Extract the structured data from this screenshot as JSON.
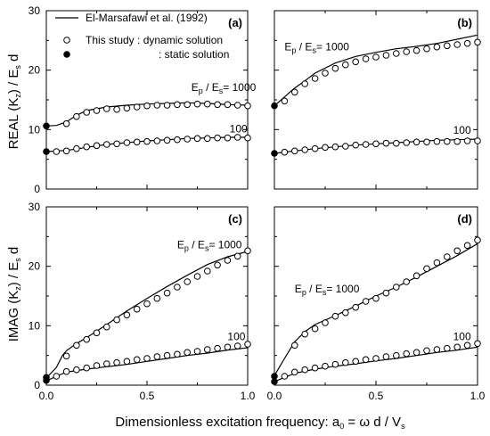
{
  "figure": {
    "ylabel_top": "REAL (K z) / Es d",
    "ylabel_bottom": "IMAG (K z) / Es d",
    "xlabel": "Dimensionless excitation frequency: a0 = ω d / Vs"
  },
  "legend": {
    "line_label": "El-Marsafawi et al. (1992)",
    "open_label": "This study  : dynamic solution",
    "filled_label": ": static solution"
  },
  "chart_data": [
    {
      "panel": "(a)",
      "type": "line",
      "xlim": [
        0,
        1
      ],
      "ylim": [
        0,
        30
      ],
      "xticks": [
        "0.0",
        "0.5",
        "1.0"
      ],
      "yticks": [
        "0",
        "10",
        "20",
        "30"
      ],
      "annotations": [
        {
          "text": "Ep / Es= 1000",
          "x": 0.72,
          "y": 16.5
        },
        {
          "text": "100",
          "x": 0.91,
          "y": 9.5
        }
      ],
      "series": [
        {
          "curve": "1000",
          "kind": "line",
          "x": [
            0,
            0.05,
            0.1,
            0.15,
            0.2,
            0.3,
            0.4,
            0.5,
            0.6,
            0.7,
            0.8,
            0.9,
            1.0
          ],
          "y": [
            10.6,
            10.7,
            11.3,
            12.4,
            13.2,
            13.8,
            14.1,
            14.3,
            14.4,
            14.5,
            14.4,
            14.2,
            14.1
          ]
        },
        {
          "curve": "1000",
          "kind": "open",
          "x": [
            0.1,
            0.15,
            0.2,
            0.25,
            0.3,
            0.35,
            0.4,
            0.45,
            0.5,
            0.55,
            0.6,
            0.65,
            0.7,
            0.75,
            0.8,
            0.85,
            0.9,
            0.95,
            1.0
          ],
          "y": [
            11.0,
            12.2,
            12.9,
            13.2,
            13.5,
            13.4,
            13.6,
            13.8,
            14.0,
            14.1,
            14.1,
            14.2,
            14.2,
            14.3,
            14.3,
            14.2,
            14.2,
            14.1,
            14.0
          ]
        },
        {
          "curve": "1000",
          "kind": "filled",
          "x": [
            0
          ],
          "y": [
            10.6
          ]
        },
        {
          "curve": "100",
          "kind": "line",
          "x": [
            0,
            0.1,
            0.2,
            0.3,
            0.4,
            0.5,
            0.6,
            0.7,
            0.8,
            0.9,
            1.0
          ],
          "y": [
            6.3,
            6.5,
            7.0,
            7.5,
            7.8,
            8.1,
            8.3,
            8.5,
            8.6,
            8.7,
            8.7
          ]
        },
        {
          "curve": "100",
          "kind": "open",
          "x": [
            0.05,
            0.1,
            0.15,
            0.2,
            0.25,
            0.3,
            0.35,
            0.4,
            0.45,
            0.5,
            0.55,
            0.6,
            0.65,
            0.7,
            0.75,
            0.8,
            0.85,
            0.9,
            0.95,
            1.0
          ],
          "y": [
            6.3,
            6.4,
            6.8,
            7.1,
            7.3,
            7.5,
            7.6,
            7.8,
            7.9,
            8.0,
            8.1,
            8.2,
            8.3,
            8.4,
            8.5,
            8.5,
            8.6,
            8.6,
            8.7,
            8.6
          ]
        },
        {
          "curve": "100",
          "kind": "filled",
          "x": [
            0
          ],
          "y": [
            6.3
          ]
        }
      ]
    },
    {
      "panel": "(b)",
      "type": "line",
      "xlim": [
        0,
        1
      ],
      "ylim": [
        0,
        30
      ],
      "xticks": [
        "0.0",
        "0.5",
        "1.0"
      ],
      "yticks": [
        "0",
        "10",
        "20",
        "30"
      ],
      "annotations": [
        {
          "text": "Ep / Es= 1000",
          "x": 0.05,
          "y": 23.3
        },
        {
          "text": "100",
          "x": 0.88,
          "y": 9.3
        }
      ],
      "series": [
        {
          "curve": "1000",
          "kind": "line",
          "x": [
            0,
            0.05,
            0.1,
            0.15,
            0.2,
            0.3,
            0.4,
            0.5,
            0.6,
            0.7,
            0.8,
            0.9,
            1.0
          ],
          "y": [
            14.0,
            15.5,
            17.0,
            18.2,
            19.5,
            21.2,
            22.3,
            23.0,
            23.6,
            24.0,
            24.5,
            25.2,
            25.9
          ]
        },
        {
          "curve": "1000",
          "kind": "open",
          "x": [
            0.05,
            0.1,
            0.15,
            0.2,
            0.25,
            0.3,
            0.35,
            0.4,
            0.45,
            0.5,
            0.55,
            0.6,
            0.65,
            0.7,
            0.75,
            0.8,
            0.85,
            0.9,
            0.95,
            1.0
          ],
          "y": [
            14.8,
            16.3,
            17.7,
            18.6,
            19.5,
            20.3,
            20.9,
            21.4,
            21.9,
            22.2,
            22.5,
            22.8,
            23.1,
            23.3,
            23.6,
            23.9,
            24.1,
            24.3,
            24.5,
            24.7
          ]
        },
        {
          "curve": "1000",
          "kind": "filled",
          "x": [
            0
          ],
          "y": [
            14.0
          ]
        },
        {
          "curve": "100",
          "kind": "line",
          "x": [
            0,
            0.1,
            0.2,
            0.3,
            0.4,
            0.5,
            0.6,
            0.7,
            0.8,
            0.9,
            1.0
          ],
          "y": [
            6.0,
            6.4,
            6.8,
            7.1,
            7.4,
            7.6,
            7.8,
            8.0,
            8.2,
            8.3,
            8.4
          ]
        },
        {
          "curve": "100",
          "kind": "open",
          "x": [
            0.05,
            0.1,
            0.15,
            0.2,
            0.25,
            0.3,
            0.35,
            0.4,
            0.45,
            0.5,
            0.55,
            0.6,
            0.65,
            0.7,
            0.75,
            0.8,
            0.85,
            0.9,
            0.95,
            1.0
          ],
          "y": [
            6.2,
            6.4,
            6.6,
            6.8,
            7.0,
            7.1,
            7.2,
            7.4,
            7.5,
            7.6,
            7.7,
            7.7,
            7.8,
            7.9,
            7.9,
            8.0,
            8.0,
            8.0,
            8.1,
            8.1
          ]
        },
        {
          "curve": "100",
          "kind": "filled",
          "x": [
            0
          ],
          "y": [
            6.0
          ]
        }
      ]
    },
    {
      "panel": "(c)",
      "type": "line",
      "xlim": [
        0,
        1
      ],
      "ylim": [
        0,
        30
      ],
      "xticks": [
        "0.0",
        "0.5",
        "1.0"
      ],
      "yticks": [
        "0",
        "10",
        "20",
        "30"
      ],
      "annotations": [
        {
          "text": "Ep / Es= 1000",
          "x": 0.65,
          "y": 23.0
        },
        {
          "text": "100",
          "x": 0.9,
          "y": 7.6
        }
      ],
      "series": [
        {
          "curve": "1000",
          "kind": "line",
          "x": [
            0,
            0.05,
            0.08,
            0.1,
            0.15,
            0.2,
            0.3,
            0.4,
            0.5,
            0.6,
            0.7,
            0.8,
            0.9,
            1.0
          ],
          "y": [
            1.2,
            3.0,
            5.0,
            5.8,
            7.0,
            8.0,
            10.2,
            12.5,
            14.6,
            16.6,
            18.5,
            20.3,
            21.6,
            22.5
          ]
        },
        {
          "curve": "1000",
          "kind": "open",
          "x": [
            0.1,
            0.15,
            0.2,
            0.25,
            0.3,
            0.35,
            0.4,
            0.45,
            0.5,
            0.55,
            0.6,
            0.65,
            0.7,
            0.75,
            0.8,
            0.85,
            0.9,
            0.95,
            1.0
          ],
          "y": [
            4.9,
            6.7,
            7.7,
            8.8,
            9.8,
            11.0,
            11.8,
            12.8,
            13.7,
            14.6,
            15.5,
            16.5,
            17.4,
            18.3,
            19.2,
            20.2,
            21.0,
            21.7,
            22.6
          ]
        },
        {
          "curve": "1000",
          "kind": "filled",
          "x": [
            0
          ],
          "y": [
            1.3
          ]
        },
        {
          "curve": "100",
          "kind": "line",
          "x": [
            0,
            0.05,
            0.1,
            0.2,
            0.3,
            0.4,
            0.5,
            0.6,
            0.7,
            0.8,
            0.9,
            1.0
          ],
          "y": [
            0.7,
            1.5,
            2.2,
            2.7,
            3.1,
            3.5,
            4.0,
            4.5,
            5.0,
            5.4,
            5.9,
            6.3
          ]
        },
        {
          "curve": "100",
          "kind": "open",
          "x": [
            0.05,
            0.1,
            0.15,
            0.2,
            0.25,
            0.3,
            0.35,
            0.4,
            0.45,
            0.5,
            0.55,
            0.6,
            0.65,
            0.7,
            0.75,
            0.8,
            0.85,
            0.9,
            0.95,
            1.0
          ],
          "y": [
            1.5,
            2.3,
            2.6,
            2.9,
            3.3,
            3.6,
            3.8,
            4.0,
            4.3,
            4.5,
            4.8,
            5.0,
            5.2,
            5.5,
            5.7,
            6.0,
            6.2,
            6.4,
            6.6,
            6.9
          ]
        },
        {
          "curve": "100",
          "kind": "filled",
          "x": [
            0
          ],
          "y": [
            0.8
          ]
        }
      ]
    },
    {
      "panel": "(d)",
      "type": "line",
      "xlim": [
        0,
        1
      ],
      "ylim": [
        0,
        30
      ],
      "xticks": [
        "0.0",
        "0.5",
        "1.0"
      ],
      "yticks": [
        "0",
        "10",
        "20",
        "30"
      ],
      "annotations": [
        {
          "text": "Ep / Es= 1000",
          "x": 0.1,
          "y": 15.6
        },
        {
          "text": "100",
          "x": 0.88,
          "y": 7.6
        }
      ],
      "series": [
        {
          "curve": "1000",
          "kind": "line",
          "x": [
            0,
            0.05,
            0.1,
            0.15,
            0.2,
            0.3,
            0.4,
            0.5,
            0.6,
            0.7,
            0.8,
            0.9,
            1.0
          ],
          "y": [
            1.6,
            4.5,
            7.3,
            9.0,
            10.2,
            11.7,
            13.3,
            15.0,
            16.5,
            18.2,
            20.0,
            21.8,
            23.8
          ]
        },
        {
          "curve": "1000",
          "kind": "open",
          "x": [
            0.1,
            0.15,
            0.2,
            0.25,
            0.3,
            0.35,
            0.4,
            0.45,
            0.5,
            0.55,
            0.6,
            0.65,
            0.7,
            0.75,
            0.8,
            0.85,
            0.9,
            0.95,
            1.0
          ],
          "y": [
            6.7,
            8.6,
            9.5,
            10.5,
            11.6,
            12.2,
            13.1,
            14.1,
            14.6,
            15.5,
            16.5,
            17.4,
            18.4,
            19.6,
            20.6,
            21.6,
            22.6,
            23.5,
            24.4
          ]
        },
        {
          "curve": "1000",
          "kind": "filled",
          "x": [
            0
          ],
          "y": [
            1.5
          ]
        },
        {
          "curve": "100",
          "kind": "line",
          "x": [
            0,
            0.05,
            0.1,
            0.2,
            0.3,
            0.4,
            0.5,
            0.6,
            0.7,
            0.8,
            0.9,
            1.0
          ],
          "y": [
            0.6,
            1.3,
            2.0,
            2.7,
            3.2,
            3.6,
            4.1,
            4.5,
            5.0,
            5.5,
            5.9,
            6.4
          ]
        },
        {
          "curve": "100",
          "kind": "open",
          "x": [
            0.05,
            0.1,
            0.15,
            0.2,
            0.25,
            0.3,
            0.35,
            0.4,
            0.45,
            0.5,
            0.55,
            0.6,
            0.65,
            0.7,
            0.75,
            0.8,
            0.85,
            0.9,
            0.95,
            1.0
          ],
          "y": [
            1.5,
            2.2,
            2.6,
            2.9,
            3.2,
            3.5,
            3.8,
            4.0,
            4.3,
            4.5,
            4.8,
            5.0,
            5.3,
            5.5,
            5.8,
            6.0,
            6.2,
            6.4,
            6.7,
            7.0
          ]
        },
        {
          "curve": "100",
          "kind": "filled",
          "x": [
            0
          ],
          "y": [
            0.6
          ]
        }
      ]
    }
  ]
}
